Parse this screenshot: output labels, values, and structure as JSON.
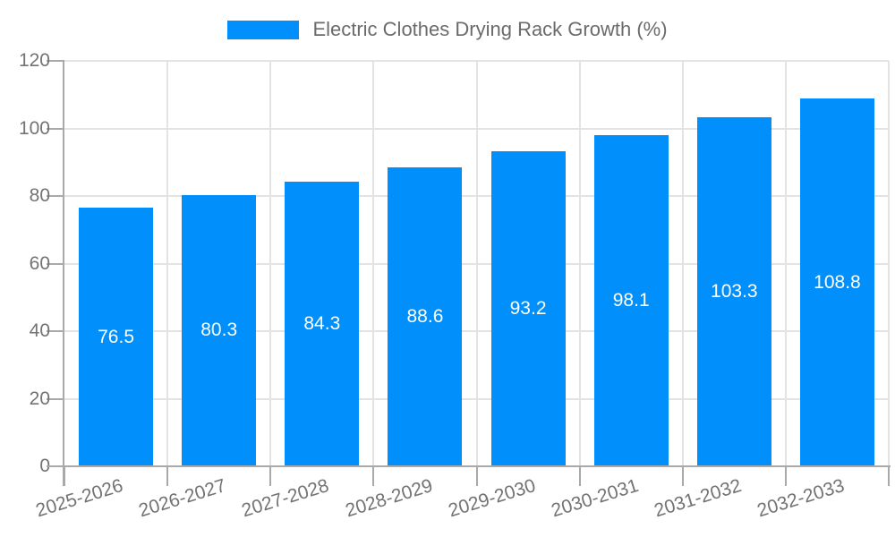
{
  "legend": {
    "series_label": "Electric Clothes Drying Rack Growth (%)"
  },
  "chart_data": {
    "type": "bar",
    "title": "Electric Clothes Drying Rack Growth (%)",
    "series_name": "Electric Clothes Drying Rack Growth (%)",
    "categories": [
      "2025-2026",
      "2026-2027",
      "2027-2028",
      "2028-2029",
      "2029-2030",
      "2030-2031",
      "2031-2032",
      "2032-2033"
    ],
    "values": [
      76.5,
      80.3,
      84.3,
      88.6,
      93.2,
      98.1,
      103.3,
      108.8
    ],
    "value_labels": [
      "76.5",
      "80.3",
      "84.3",
      "88.6",
      "93.2",
      "98.1",
      "103.3",
      "108.8"
    ],
    "xlabel": "",
    "ylabel": "",
    "ylim": [
      0,
      120
    ],
    "yticks": [
      0,
      20,
      40,
      60,
      80,
      100,
      120
    ],
    "grid": true,
    "legend_position": "top",
    "value_label_position": "inside-center",
    "x_label_rotation_deg": -17,
    "colors": {
      "bar": "#008FFB",
      "grid": "#e3e3e3",
      "axis": "#a9a9a9",
      "axis_text": "#737373",
      "legend_text": "#6b6b6b",
      "value_text": "#ffffff"
    }
  }
}
